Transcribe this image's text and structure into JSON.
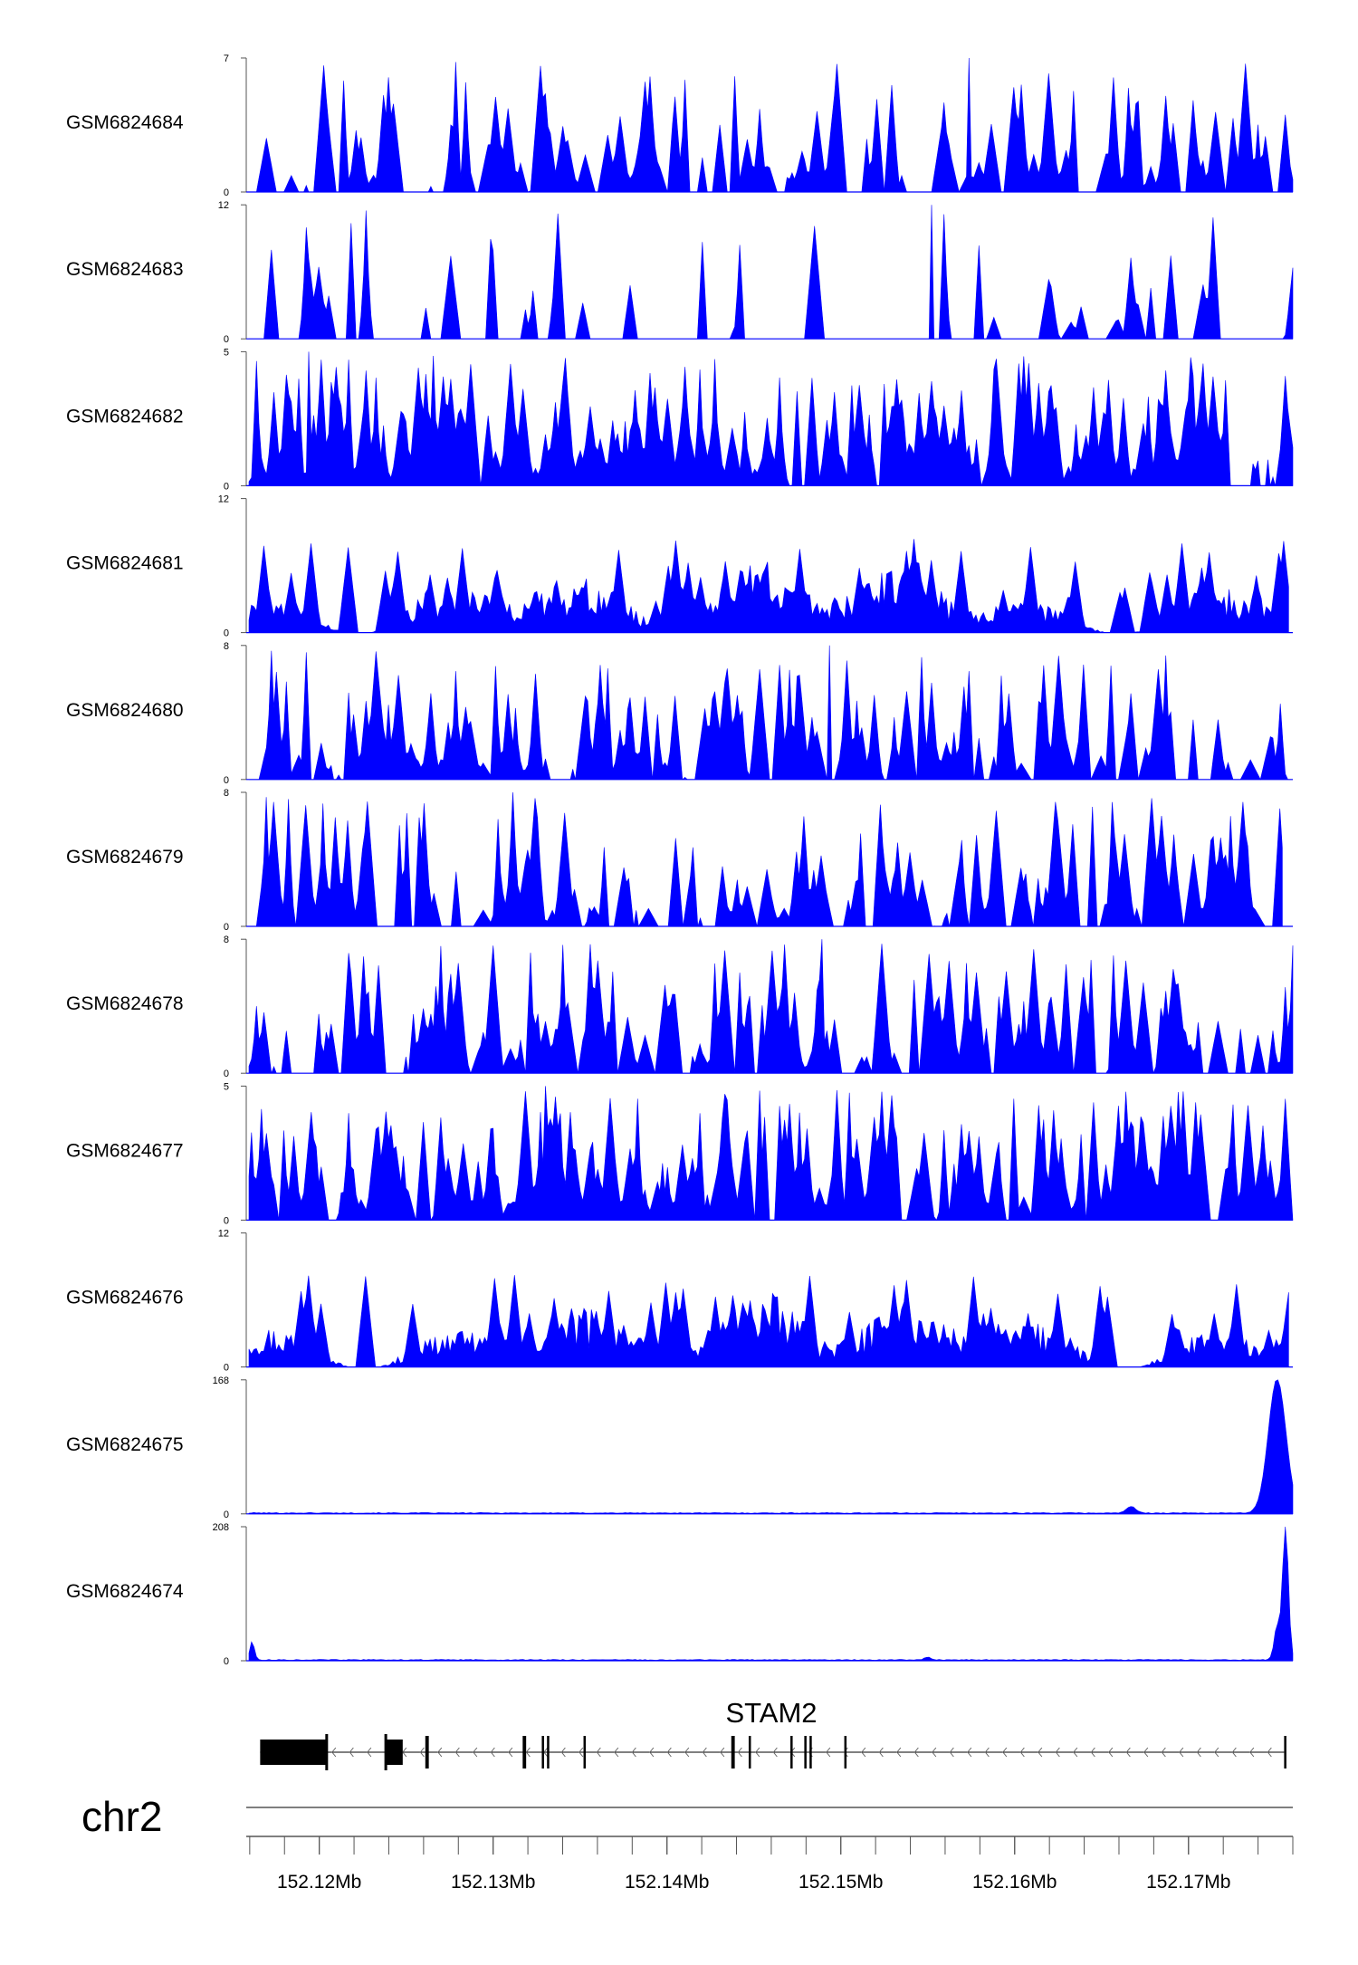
{
  "chart_data": {
    "type": "area",
    "genome": {
      "chromosome": "chr2",
      "gene": "STAM2",
      "x_range_mb": [
        152.1158,
        152.176
      ],
      "x_ticks": [
        {
          "value": 152.12,
          "label": "152.12Mb"
        },
        {
          "value": 152.13,
          "label": "152.13Mb"
        },
        {
          "value": 152.14,
          "label": "152.14Mb"
        },
        {
          "value": 152.15,
          "label": "152.15Mb"
        },
        {
          "value": 152.16,
          "label": "152.16Mb"
        },
        {
          "value": 152.17,
          "label": "152.17Mb"
        }
      ],
      "minor_tick_step_mb": 0.002,
      "strand": "minus",
      "gene_span_mb": [
        152.1166,
        152.1755
      ],
      "exons": [
        {
          "start": 152.1166,
          "end": 152.1204
        },
        {
          "start": 152.1238,
          "end": 152.1248
        },
        {
          "start": 152.1261,
          "end": 152.1263
        },
        {
          "start": 152.1317,
          "end": 152.1319
        },
        {
          "start": 152.1328,
          "end": 152.1329
        },
        {
          "start": 152.1331,
          "end": 152.1332
        },
        {
          "start": 152.1352,
          "end": 152.1353
        },
        {
          "start": 152.1437,
          "end": 152.1439
        },
        {
          "start": 152.1447,
          "end": 152.1448
        },
        {
          "start": 152.1471,
          "end": 152.1472
        },
        {
          "start": 152.1479,
          "end": 152.148
        },
        {
          "start": 152.1482,
          "end": 152.1483
        },
        {
          "start": 152.1502,
          "end": 152.1503
        },
        {
          "start": 152.1755,
          "end": 152.1756
        }
      ]
    },
    "tracks": [
      {
        "name": "GSM6824684",
        "ymax": 7,
        "pattern": "sparse",
        "fill_to": 1.0,
        "seed": 11
      },
      {
        "name": "GSM6824683",
        "ymax": 12,
        "pattern": "verysparse",
        "fill_to": 1.0,
        "seed": 23
      },
      {
        "name": "GSM6824682",
        "ymax": 5,
        "pattern": "dense",
        "fill_to": 1.0,
        "seed": 37
      },
      {
        "name": "GSM6824681",
        "ymax": 12,
        "pattern": "bumpy",
        "fill_to": 0.996,
        "seed": 41
      },
      {
        "name": "GSM6824680",
        "ymax": 8,
        "pattern": "sparse2",
        "fill_to": 1.0,
        "seed": 53
      },
      {
        "name": "GSM6824679",
        "ymax": 8,
        "pattern": "sparse2",
        "fill_to": 0.99,
        "seed": 67
      },
      {
        "name": "GSM6824678",
        "ymax": 8,
        "pattern": "sparse2",
        "fill_to": 1.0,
        "seed": 71
      },
      {
        "name": "GSM6824677",
        "ymax": 5,
        "pattern": "dense",
        "fill_to": 1.0,
        "seed": 83
      },
      {
        "name": "GSM6824676",
        "ymax": 12,
        "pattern": "bumpy",
        "fill_to": 0.996,
        "seed": 97
      },
      {
        "name": "GSM6824675",
        "ymax": 168,
        "pattern": "peak1",
        "fill_to": 1.0,
        "seed": 101
      },
      {
        "name": "GSM6824674",
        "ymax": 208,
        "pattern": "peak2",
        "fill_to": 1.0,
        "seed": 113
      }
    ],
    "colors": {
      "signal": "#0000FF",
      "axis": "#555555",
      "gene": "#000000",
      "label": "#000000"
    }
  }
}
